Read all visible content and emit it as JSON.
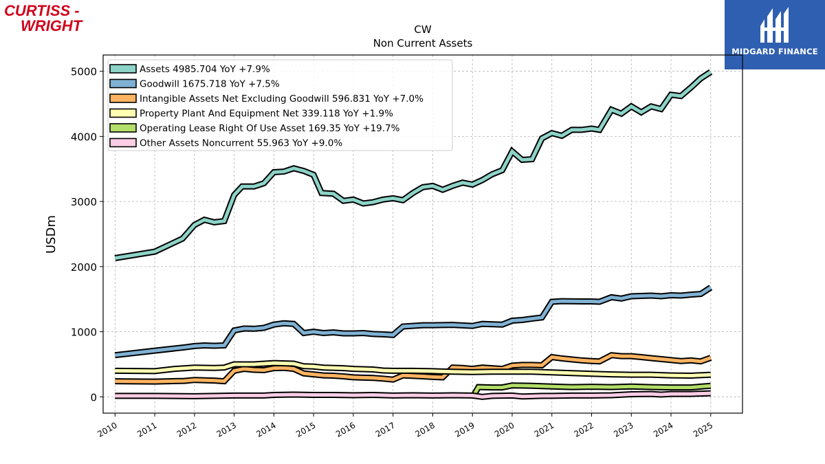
{
  "logos": {
    "left_line1": "CURTISS -",
    "left_line2": "WRIGHT",
    "right_text": "MIDGARD FINANCE"
  },
  "colors": {
    "assets": "#8dd3c7",
    "goodwill": "#80b1d3",
    "intangibles": "#fdb462",
    "ppe": "#ffffb3",
    "lease": "#b3de69",
    "other": "#fccde5",
    "brand_red": "#d0021b",
    "brand_blue": "#2f5fb0"
  },
  "chart_data": {
    "type": "line",
    "title": "CW",
    "subtitle": "Non Current  Assets",
    "ylabel": "USDm",
    "xlabel": "",
    "xlim": [
      2009.7,
      2025.8
    ],
    "ylim": [
      -250,
      5250
    ],
    "yticks": [
      0,
      1000,
      2000,
      3000,
      4000,
      5000
    ],
    "xticks": [
      "2010",
      "2011",
      "2012",
      "2013",
      "2014",
      "2015",
      "2016",
      "2017",
      "2018",
      "2019",
      "2020",
      "2021",
      "2022",
      "2023",
      "2024",
      "2025"
    ],
    "grid": true,
    "legend_position": "top-left",
    "series": [
      {
        "name": "Assets  4985.704 YoY +7.9%",
        "color_key": "assets",
        "points": [
          [
            2010.0,
            2130
          ],
          [
            2011.0,
            2230
          ],
          [
            2011.7,
            2430
          ],
          [
            2012.0,
            2640
          ],
          [
            2012.25,
            2720
          ],
          [
            2012.5,
            2680
          ],
          [
            2012.75,
            2700
          ],
          [
            2013.0,
            3100
          ],
          [
            2013.2,
            3230
          ],
          [
            2013.5,
            3230
          ],
          [
            2013.75,
            3280
          ],
          [
            2014.0,
            3450
          ],
          [
            2014.25,
            3460
          ],
          [
            2014.5,
            3510
          ],
          [
            2014.75,
            3470
          ],
          [
            2015.0,
            3410
          ],
          [
            2015.2,
            3130
          ],
          [
            2015.5,
            3120
          ],
          [
            2015.75,
            3010
          ],
          [
            2016.0,
            3030
          ],
          [
            2016.25,
            2970
          ],
          [
            2016.5,
            2990
          ],
          [
            2016.75,
            3030
          ],
          [
            2017.0,
            3050
          ],
          [
            2017.25,
            3020
          ],
          [
            2017.5,
            3130
          ],
          [
            2017.75,
            3220
          ],
          [
            2018.0,
            3240
          ],
          [
            2018.25,
            3180
          ],
          [
            2018.5,
            3240
          ],
          [
            2018.75,
            3290
          ],
          [
            2019.0,
            3260
          ],
          [
            2019.25,
            3330
          ],
          [
            2019.5,
            3420
          ],
          [
            2019.75,
            3480
          ],
          [
            2020.0,
            3770
          ],
          [
            2020.25,
            3640
          ],
          [
            2020.5,
            3650
          ],
          [
            2020.75,
            3970
          ],
          [
            2021.0,
            4050
          ],
          [
            2021.25,
            4010
          ],
          [
            2021.5,
            4100
          ],
          [
            2021.75,
            4100
          ],
          [
            2022.0,
            4120
          ],
          [
            2022.2,
            4100
          ],
          [
            2022.5,
            4410
          ],
          [
            2022.75,
            4350
          ],
          [
            2023.0,
            4460
          ],
          [
            2023.25,
            4370
          ],
          [
            2023.5,
            4460
          ],
          [
            2023.75,
            4420
          ],
          [
            2024.0,
            4640
          ],
          [
            2024.25,
            4620
          ],
          [
            2024.5,
            4750
          ],
          [
            2024.75,
            4890
          ],
          [
            2025.0,
            4990
          ]
        ]
      },
      {
        "name": "Goodwill  1675.718 YoY +7.5%",
        "color_key": "goodwill",
        "points": [
          [
            2010.0,
            640
          ],
          [
            2011.0,
            710
          ],
          [
            2011.75,
            760
          ],
          [
            2012.0,
            780
          ],
          [
            2012.25,
            790
          ],
          [
            2012.5,
            785
          ],
          [
            2012.75,
            790
          ],
          [
            2013.0,
            1020
          ],
          [
            2013.25,
            1050
          ],
          [
            2013.5,
            1045
          ],
          [
            2013.75,
            1060
          ],
          [
            2014.0,
            1110
          ],
          [
            2014.25,
            1130
          ],
          [
            2014.5,
            1120
          ],
          [
            2014.75,
            980
          ],
          [
            2015.0,
            1000
          ],
          [
            2015.25,
            980
          ],
          [
            2015.5,
            990
          ],
          [
            2015.75,
            975
          ],
          [
            2016.0,
            975
          ],
          [
            2016.25,
            980
          ],
          [
            2016.5,
            965
          ],
          [
            2016.75,
            960
          ],
          [
            2017.0,
            950
          ],
          [
            2017.25,
            1080
          ],
          [
            2017.75,
            1100
          ],
          [
            2018.0,
            1100
          ],
          [
            2018.5,
            1105
          ],
          [
            2019.0,
            1090
          ],
          [
            2019.25,
            1120
          ],
          [
            2019.75,
            1110
          ],
          [
            2020.0,
            1170
          ],
          [
            2020.25,
            1180
          ],
          [
            2020.5,
            1200
          ],
          [
            2020.75,
            1220
          ],
          [
            2021.0,
            1460
          ],
          [
            2021.25,
            1470
          ],
          [
            2021.75,
            1465
          ],
          [
            2022.0,
            1465
          ],
          [
            2022.2,
            1460
          ],
          [
            2022.5,
            1530
          ],
          [
            2022.75,
            1510
          ],
          [
            2023.0,
            1545
          ],
          [
            2023.5,
            1555
          ],
          [
            2023.75,
            1545
          ],
          [
            2024.0,
            1560
          ],
          [
            2024.25,
            1555
          ],
          [
            2024.5,
            1570
          ],
          [
            2024.75,
            1580
          ],
          [
            2025.0,
            1680
          ]
        ]
      },
      {
        "name": "Intangible Assets Net Excluding Goodwill  596.831 YoY +7.0%",
        "color_key": "intangibles",
        "points": [
          [
            2010.0,
            240
          ],
          [
            2011.0,
            235
          ],
          [
            2011.75,
            245
          ],
          [
            2012.0,
            260
          ],
          [
            2012.5,
            250
          ],
          [
            2012.75,
            240
          ],
          [
            2013.0,
            400
          ],
          [
            2013.25,
            430
          ],
          [
            2013.5,
            415
          ],
          [
            2013.75,
            410
          ],
          [
            2014.0,
            440
          ],
          [
            2014.25,
            445
          ],
          [
            2014.5,
            430
          ],
          [
            2014.75,
            360
          ],
          [
            2015.0,
            345
          ],
          [
            2015.25,
            330
          ],
          [
            2015.5,
            325
          ],
          [
            2015.75,
            315
          ],
          [
            2016.0,
            300
          ],
          [
            2016.25,
            295
          ],
          [
            2016.5,
            290
          ],
          [
            2016.75,
            280
          ],
          [
            2017.0,
            265
          ],
          [
            2017.25,
            330
          ],
          [
            2017.75,
            315
          ],
          [
            2018.0,
            305
          ],
          [
            2018.25,
            300
          ],
          [
            2018.5,
            450
          ],
          [
            2018.75,
            445
          ],
          [
            2019.0,
            430
          ],
          [
            2019.25,
            450
          ],
          [
            2019.75,
            430
          ],
          [
            2020.0,
            480
          ],
          [
            2020.25,
            490
          ],
          [
            2020.5,
            490
          ],
          [
            2020.75,
            485
          ],
          [
            2021.0,
            610
          ],
          [
            2021.25,
            590
          ],
          [
            2021.5,
            575
          ],
          [
            2021.75,
            560
          ],
          [
            2022.0,
            550
          ],
          [
            2022.2,
            545
          ],
          [
            2022.5,
            640
          ],
          [
            2022.75,
            625
          ],
          [
            2023.0,
            625
          ],
          [
            2023.25,
            610
          ],
          [
            2023.5,
            595
          ],
          [
            2023.75,
            580
          ],
          [
            2024.0,
            565
          ],
          [
            2024.25,
            550
          ],
          [
            2024.5,
            560
          ],
          [
            2024.75,
            545
          ],
          [
            2025.0,
            600
          ]
        ]
      },
      {
        "name": "Property Plant And Equipment Net  339.118 YoY +1.9%",
        "color_key": "ppe",
        "points": [
          [
            2010.0,
            400
          ],
          [
            2011.0,
            395
          ],
          [
            2011.5,
            430
          ],
          [
            2012.0,
            450
          ],
          [
            2012.5,
            445
          ],
          [
            2012.75,
            450
          ],
          [
            2013.0,
            500
          ],
          [
            2013.5,
            500
          ],
          [
            2014.0,
            520
          ],
          [
            2014.5,
            510
          ],
          [
            2014.75,
            470
          ],
          [
            2015.0,
            465
          ],
          [
            2015.25,
            450
          ],
          [
            2015.75,
            440
          ],
          [
            2016.0,
            430
          ],
          [
            2016.5,
            420
          ],
          [
            2016.75,
            405
          ],
          [
            2017.0,
            400
          ],
          [
            2017.5,
            400
          ],
          [
            2018.0,
            395
          ],
          [
            2018.5,
            385
          ],
          [
            2019.0,
            380
          ],
          [
            2019.5,
            385
          ],
          [
            2020.0,
            385
          ],
          [
            2020.5,
            385
          ],
          [
            2021.0,
            375
          ],
          [
            2021.5,
            365
          ],
          [
            2022.0,
            355
          ],
          [
            2022.5,
            345
          ],
          [
            2023.0,
            340
          ],
          [
            2023.5,
            340
          ],
          [
            2024.0,
            330
          ],
          [
            2024.5,
            325
          ],
          [
            2025.0,
            340
          ]
        ]
      },
      {
        "name": "Operating Lease Right Of Use Asset  169.35 YoY +19.7%",
        "color_key": "lease",
        "points": [
          [
            2019.0,
            -10
          ],
          [
            2019.15,
            150
          ],
          [
            2019.5,
            145
          ],
          [
            2019.75,
            145
          ],
          [
            2020.0,
            175
          ],
          [
            2020.5,
            170
          ],
          [
            2021.0,
            160
          ],
          [
            2021.5,
            150
          ],
          [
            2022.0,
            155
          ],
          [
            2022.5,
            150
          ],
          [
            2023.0,
            160
          ],
          [
            2023.5,
            150
          ],
          [
            2024.0,
            145
          ],
          [
            2024.5,
            145
          ],
          [
            2025.0,
            170
          ]
        ]
      },
      {
        "name": "Other Assets Noncurrent  55.963 YoY +9.0%",
        "color_key": "other",
        "points": [
          [
            2010.0,
            15
          ],
          [
            2011.0,
            15
          ],
          [
            2012.0,
            10
          ],
          [
            2013.0,
            20
          ],
          [
            2013.75,
            20
          ],
          [
            2014.0,
            30
          ],
          [
            2014.5,
            35
          ],
          [
            2015.0,
            30
          ],
          [
            2015.5,
            30
          ],
          [
            2016.0,
            25
          ],
          [
            2016.5,
            30
          ],
          [
            2017.0,
            20
          ],
          [
            2017.5,
            25
          ],
          [
            2018.0,
            20
          ],
          [
            2018.5,
            25
          ],
          [
            2019.0,
            20
          ],
          [
            2019.25,
            0
          ],
          [
            2019.5,
            15
          ],
          [
            2020.0,
            20
          ],
          [
            2020.25,
            5
          ],
          [
            2020.75,
            15
          ],
          [
            2021.0,
            15
          ],
          [
            2021.5,
            20
          ],
          [
            2022.0,
            20
          ],
          [
            2022.5,
            25
          ],
          [
            2023.0,
            40
          ],
          [
            2023.5,
            45
          ],
          [
            2023.75,
            35
          ],
          [
            2024.0,
            45
          ],
          [
            2024.5,
            45
          ],
          [
            2025.0,
            55
          ]
        ]
      }
    ]
  }
}
